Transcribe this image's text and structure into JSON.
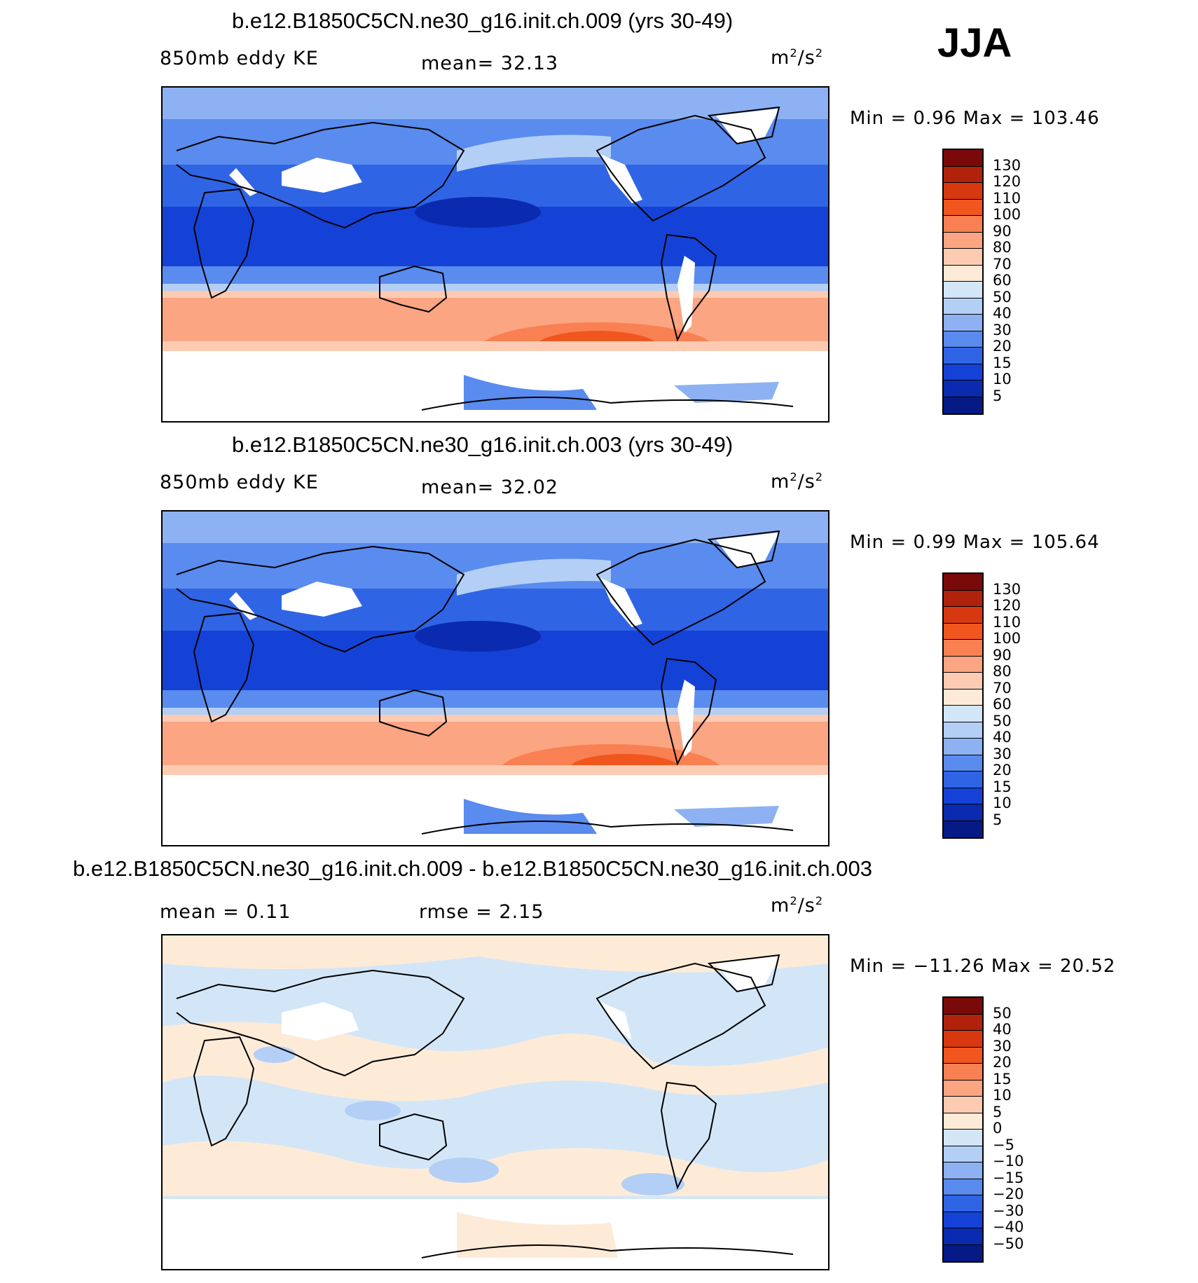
{
  "season": "JJA",
  "panels": [
    {
      "title": "b.e12.B1850C5CN.ne30_g16.init.ch.009 (yrs 30-49)",
      "variable": "850mb eddy KE",
      "stat1": "mean=   32.13",
      "stat2": "",
      "units_base": "m",
      "units_sup1": "2",
      "units_mid": "/s",
      "units_sup2": "2",
      "minmax": "Min =    0.96 Max  = 103.46",
      "type": "field",
      "colorbar": {
        "labels": [
          "130",
          "120",
          "110",
          "100",
          "90",
          "80",
          "70",
          "60",
          "50",
          "40",
          "30",
          "20",
          "15",
          "10",
          "5"
        ],
        "colors": [
          "#7a0a0a",
          "#b0220b",
          "#d8380f",
          "#f0561e",
          "#f98052",
          "#fba582",
          "#fdcbb2",
          "#fdebd8",
          "#d3e6f8",
          "#b3cff5",
          "#8db1f2",
          "#5a8bee",
          "#2f65e5",
          "#1542d6",
          "#0a2ab0",
          "#061a85"
        ]
      }
    },
    {
      "title": "b.e12.B1850C5CN.ne30_g16.init.ch.003 (yrs 30-49)",
      "variable": "850mb eddy KE",
      "stat1": "mean=   32.02",
      "stat2": "",
      "units_base": "m",
      "units_sup1": "2",
      "units_mid": "/s",
      "units_sup2": "2",
      "minmax": "Min =    0.99 Max  = 105.64",
      "type": "field",
      "colorbar": {
        "labels": [
          "130",
          "120",
          "110",
          "100",
          "90",
          "80",
          "70",
          "60",
          "50",
          "40",
          "30",
          "20",
          "15",
          "10",
          "5"
        ],
        "colors": [
          "#7a0a0a",
          "#b0220b",
          "#d8380f",
          "#f0561e",
          "#f98052",
          "#fba582",
          "#fdcbb2",
          "#fdebd8",
          "#d3e6f8",
          "#b3cff5",
          "#8db1f2",
          "#5a8bee",
          "#2f65e5",
          "#1542d6",
          "#0a2ab0",
          "#061a85"
        ]
      }
    },
    {
      "title": "b.e12.B1850C5CN.ne30_g16.init.ch.009 - b.e12.B1850C5CN.ne30_g16.init.ch.003",
      "variable": "",
      "stat1": "mean =    0.11",
      "stat2": "rmse =    2.15",
      "units_base": "m",
      "units_sup1": "2",
      "units_mid": "/s",
      "units_sup2": "2",
      "minmax": "Min = −11.26  Max =   20.52",
      "type": "diff",
      "colorbar": {
        "labels": [
          "50",
          "40",
          "30",
          "20",
          "15",
          "10",
          "5",
          "0",
          "−5",
          "−10",
          "−15",
          "−20",
          "−30",
          "−40",
          "−50"
        ],
        "colors": [
          "#7a0a0a",
          "#b0220b",
          "#d8380f",
          "#f0561e",
          "#f98052",
          "#fba582",
          "#fdcbb2",
          "#fdebd8",
          "#d3e6f8",
          "#b3cff5",
          "#8db1f2",
          "#5a8bee",
          "#2f65e5",
          "#1542d6",
          "#0a2ab0",
          "#061a85"
        ]
      }
    }
  ]
}
